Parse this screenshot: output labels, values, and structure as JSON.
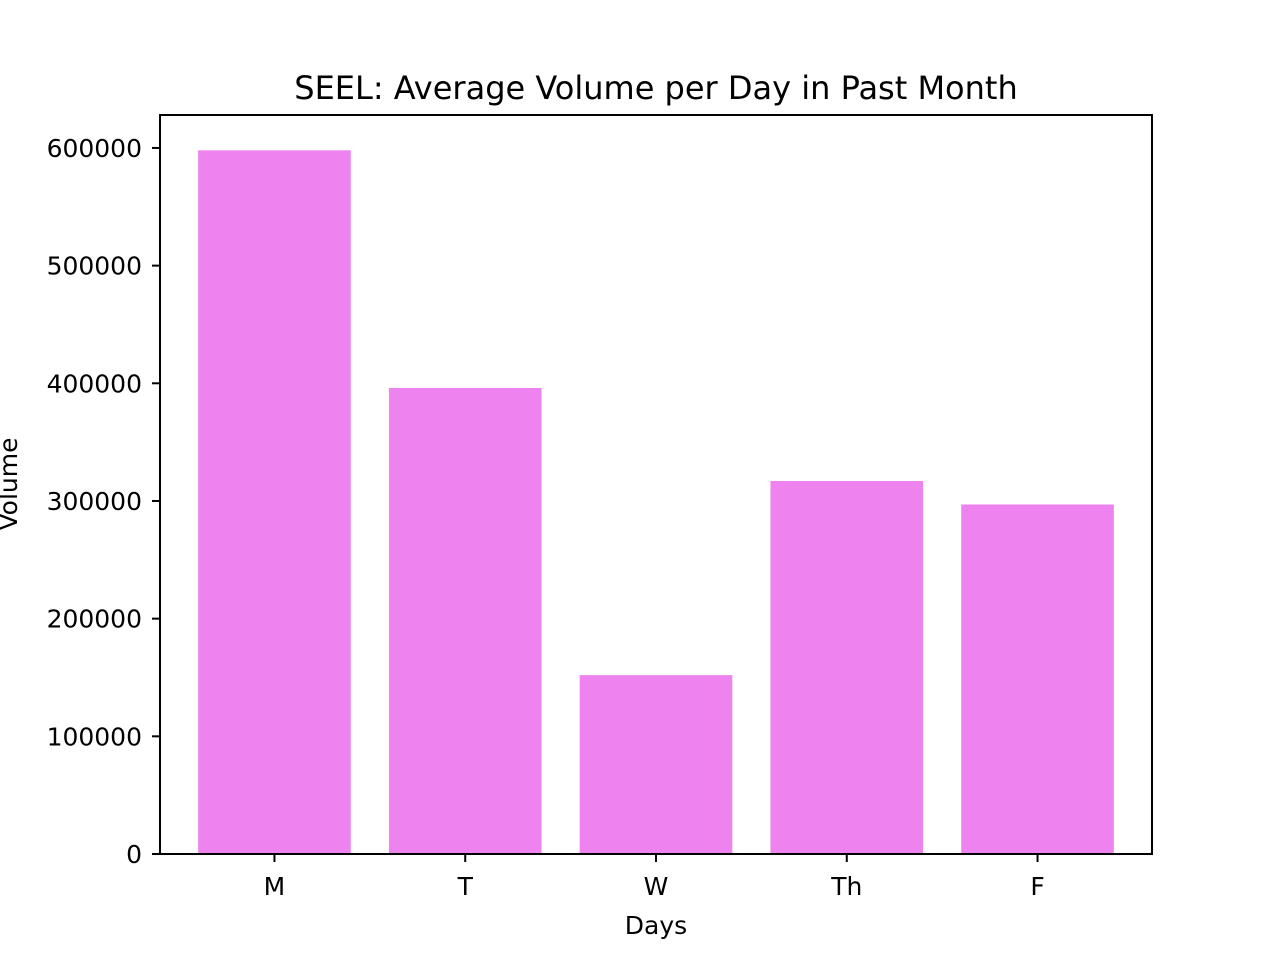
{
  "chart_data": {
    "type": "bar",
    "title": "SEEL: Average Volume per Day in Past Month",
    "xlabel": "Days",
    "ylabel": "Volume",
    "categories": [
      "M",
      "T",
      "W",
      "Th",
      "F"
    ],
    "values": [
      598000,
      396000,
      152000,
      317000,
      297000
    ],
    "ylim": [
      0,
      628000
    ],
    "yticks": [
      0,
      100000,
      200000,
      300000,
      400000,
      500000,
      600000
    ],
    "ytick_labels": [
      "0",
      "100000",
      "200000",
      "300000",
      "400000",
      "500000",
      "600000"
    ],
    "grid": false,
    "legend": "none",
    "bar_color": "#EE82EE"
  }
}
